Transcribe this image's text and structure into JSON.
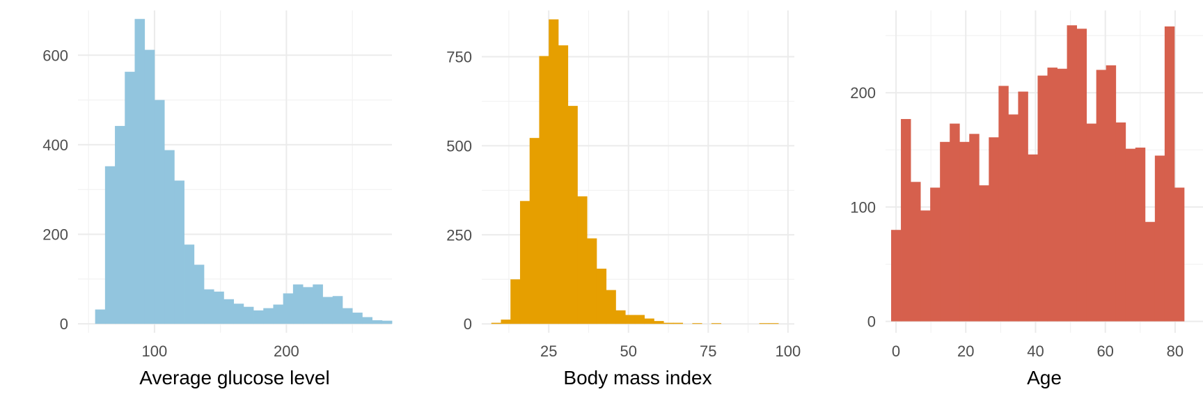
{
  "chart_data": [
    {
      "type": "bar",
      "subtype": "histogram",
      "xlabel": "Average glucose level",
      "ylabel": "",
      "color": "#92c5de",
      "grid": true,
      "xlim": [
        42,
        280
      ],
      "ylim": [
        -20,
        700
      ],
      "x_ticks": [
        100,
        200
      ],
      "x_minor_ticks": [
        50,
        150,
        250
      ],
      "y_ticks": [
        0,
        200,
        400,
        600
      ],
      "y_minor_ticks": [
        100,
        300,
        500
      ],
      "bin_start": 55,
      "bin_width": 7.5,
      "values": [
        32,
        352,
        442,
        563,
        681,
        612,
        500,
        388,
        320,
        177,
        132,
        77,
        72,
        55,
        45,
        38,
        30,
        35,
        43,
        68,
        88,
        82,
        88,
        60,
        62,
        35,
        25,
        15,
        8,
        7
      ]
    },
    {
      "type": "bar",
      "subtype": "histogram",
      "xlabel": "Body mass index",
      "ylabel": "",
      "color": "#e69f00",
      "grid": true,
      "xlim": [
        4,
        102
      ],
      "ylim": [
        -25,
        880
      ],
      "x_ticks": [
        25,
        50,
        75,
        100
      ],
      "x_minor_ticks": [
        12.5,
        37.5,
        62.5,
        87.5
      ],
      "y_ticks": [
        0,
        250,
        500,
        750
      ],
      "y_minor_ticks": [
        125,
        375,
        625
      ],
      "bin_start": 7,
      "bin_width": 3,
      "values": [
        3,
        12,
        125,
        345,
        522,
        752,
        855,
        782,
        612,
        358,
        240,
        155,
        95,
        38,
        25,
        25,
        15,
        8,
        3,
        3,
        0,
        2,
        0,
        2,
        0,
        0,
        0,
        0,
        2,
        2,
        0
      ]
    },
    {
      "type": "bar",
      "subtype": "histogram",
      "xlabel": "Age",
      "ylabel": "",
      "color": "#d6604d",
      "grid": true,
      "xlim": [
        -3,
        88
      ],
      "ylim": [
        -10,
        272
      ],
      "x_ticks": [
        0,
        20,
        40,
        60,
        80
      ],
      "x_minor_ticks": [
        10,
        30,
        50,
        70
      ],
      "y_ticks": [
        0,
        100,
        200
      ],
      "y_minor_ticks": [
        50,
        150,
        250
      ],
      "bin_start": -1.4,
      "bin_width": 2.8,
      "values": [
        80,
        177,
        122,
        97,
        117,
        157,
        173,
        157,
        164,
        119,
        161,
        206,
        181,
        201,
        146,
        215,
        222,
        221,
        259,
        256,
        173,
        220,
        224,
        174,
        151,
        152,
        87,
        145,
        258,
        117
      ]
    }
  ]
}
